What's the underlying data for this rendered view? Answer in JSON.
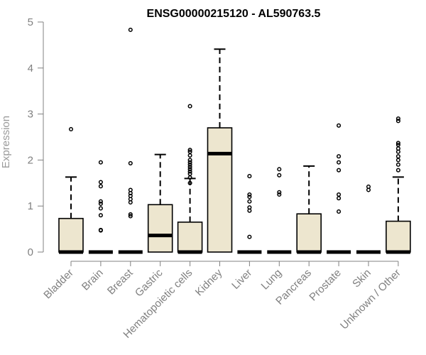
{
  "chart_data": {
    "type": "boxplot",
    "title": "ENSG00000215120 - AL590763.5",
    "xlabel": "",
    "ylabel": "Expression",
    "ylim": [
      0,
      5
    ],
    "yticks": [
      0,
      1,
      2,
      3,
      4,
      5
    ],
    "grid": false,
    "colors": {
      "box_fill": "#ede6cf",
      "box_stroke": "#000000",
      "axis": "#808080",
      "tick_text": "#808080"
    },
    "categories": [
      "Bladder",
      "Brain",
      "Breast",
      "Gastric",
      "Hematopoietic cells",
      "Kidney",
      "Liver",
      "Lung",
      "Pancreas",
      "Prostate",
      "Skin",
      "Unknown / Other"
    ],
    "boxes": [
      {
        "category": "Bladder",
        "q1": 0,
        "median": 0,
        "q3": 0.73,
        "whisker_low": 0,
        "whisker_high": 1.63,
        "outliers": [
          2.67
        ]
      },
      {
        "category": "Brain",
        "q1": 0,
        "median": 0,
        "q3": 0,
        "whisker_low": 0,
        "whisker_high": 0,
        "outliers": [
          0.47,
          0.48,
          0.8,
          0.95,
          1.05,
          1.1,
          1.43,
          1.52,
          1.95
        ]
      },
      {
        "category": "Breast",
        "q1": 0,
        "median": 0,
        "q3": 0,
        "whisker_low": 0,
        "whisker_high": 0,
        "outliers": [
          0.78,
          0.82,
          1.08,
          1.15,
          1.22,
          1.28,
          1.35,
          1.93,
          4.83
        ]
      },
      {
        "category": "Gastric",
        "q1": 0,
        "median": 0.36,
        "q3": 1.03,
        "whisker_low": 0,
        "whisker_high": 2.12,
        "outliers": []
      },
      {
        "category": "Hematopoietic cells",
        "q1": 0,
        "median": 0,
        "q3": 0.65,
        "whisker_low": 0,
        "whisker_high": 1.6,
        "outliers": [
          1.5,
          1.62,
          1.7,
          1.75,
          1.8,
          1.85,
          1.9,
          1.95,
          2.0,
          2.1,
          2.18,
          2.22,
          3.17
        ]
      },
      {
        "category": "Kidney",
        "q1": 0,
        "median": 2.14,
        "q3": 2.7,
        "whisker_low": 0,
        "whisker_high": 4.41,
        "outliers": []
      },
      {
        "category": "Liver",
        "q1": 0,
        "median": 0,
        "q3": 0,
        "whisker_low": 0,
        "whisker_high": 0,
        "outliers": [
          0.33,
          0.9,
          0.97,
          1.1,
          1.2,
          1.25,
          1.65
        ]
      },
      {
        "category": "Lung",
        "q1": 0,
        "median": 0,
        "q3": 0,
        "whisker_low": 0,
        "whisker_high": 0,
        "outliers": [
          1.25,
          1.3,
          1.67,
          1.8
        ]
      },
      {
        "category": "Pancreas",
        "q1": 0,
        "median": 0,
        "q3": 0.83,
        "whisker_low": 0,
        "whisker_high": 1.87,
        "outliers": []
      },
      {
        "category": "Prostate",
        "q1": 0,
        "median": 0,
        "q3": 0,
        "whisker_low": 0,
        "whisker_high": 0,
        "outliers": [
          0.88,
          1.17,
          1.25,
          1.78,
          1.95,
          2.08,
          2.75
        ]
      },
      {
        "category": "Skin",
        "q1": 0,
        "median": 0,
        "q3": 0,
        "whisker_low": 0,
        "whisker_high": 0,
        "outliers": [
          1.35,
          1.42
        ]
      },
      {
        "category": "Unknown / Other",
        "q1": 0,
        "median": 0,
        "q3": 0.67,
        "whisker_low": 0,
        "whisker_high": 1.63,
        "outliers": [
          1.78,
          1.9,
          2.0,
          2.08,
          2.18,
          2.25,
          2.33,
          2.37,
          2.85,
          2.9
        ]
      }
    ]
  }
}
